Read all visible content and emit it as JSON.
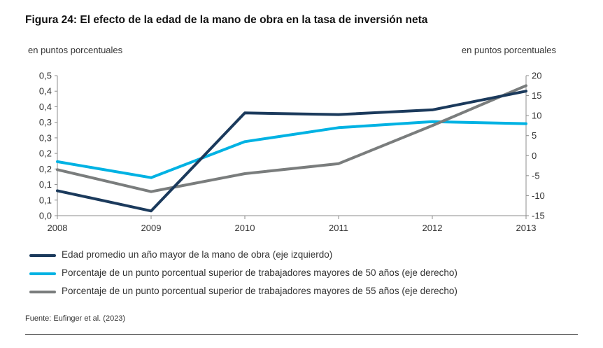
{
  "figure": {
    "title": "Figura 24: El efecto de la edad de la mano de obra en la tasa de inversión neta",
    "source": "Fuente: Eufinger et al. (2023)"
  },
  "chart_data": {
    "type": "line",
    "title": "Figura 24: El efecto de la edad de la mano de obra en la tasa de inversión neta",
    "categories": [
      "2008",
      "2009",
      "2010",
      "2011",
      "2012",
      "2013"
    ],
    "left_axis": {
      "label": "en puntos porcentuales",
      "ylim": [
        0,
        0.45
      ],
      "ticks": [
        0,
        0.05,
        0.1,
        0.15,
        0.2,
        0.25,
        0.3,
        0.35,
        0.4,
        0.45
      ],
      "tick_labels": [
        "0,0",
        "0,1",
        "0,1",
        "0,2",
        "0,2",
        "0,3",
        "0,3",
        "0,4",
        "0,4",
        "0,5"
      ]
    },
    "right_axis": {
      "label": "en puntos porcentuales",
      "ylim": [
        -15,
        20
      ],
      "ticks": [
        -15,
        -10,
        -5,
        0,
        5,
        10,
        15,
        20
      ],
      "tick_labels": [
        "-15",
        "-10",
        "-5",
        "0",
        "5",
        "10",
        "15",
        "20"
      ]
    },
    "grid": false,
    "legend_position": "bottom",
    "series": [
      {
        "name": "Edad promedio un año mayor de la mano de obra (eje izquierdo)",
        "axis": "left",
        "color": "#1b3a5c",
        "values": [
          0.08,
          0.015,
          0.33,
          0.325,
          0.34,
          0.4
        ]
      },
      {
        "name": "Porcentaje de un punto porcentual superior de trabajadores mayores de 50 años (eje derecho)",
        "axis": "right",
        "color": "#00b2e3",
        "values": [
          -1.5,
          -5.5,
          3.5,
          7,
          8.5,
          8
        ]
      },
      {
        "name": "Porcentaje de un punto porcentual superior de trabajadores mayores de 55 años (eje derecho)",
        "axis": "right",
        "color": "#7a7d7d",
        "values": [
          -3.5,
          -9,
          -4.5,
          -2,
          7.5,
          17.5
        ]
      }
    ]
  }
}
